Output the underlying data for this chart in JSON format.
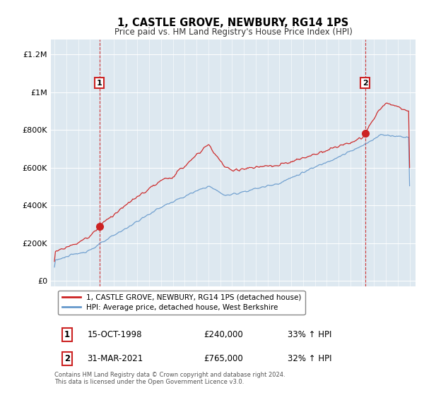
{
  "title": "1, CASTLE GROVE, NEWBURY, RG14 1PS",
  "subtitle": "Price paid vs. HM Land Registry's House Price Index (HPI)",
  "ylabel_ticks": [
    0,
    200000,
    400000,
    600000,
    800000,
    1000000,
    1200000
  ],
  "ylabel_labels": [
    "£0",
    "£200K",
    "£400K",
    "£600K",
    "£800K",
    "£1M",
    "£1.2M"
  ],
  "xlim_low": 1994.7,
  "xlim_high": 2025.5,
  "ylim_low": -30000,
  "ylim_high": 1280000,
  "sale1_year": 1998.79,
  "sale1_price": 240000,
  "sale1_label": "1",
  "sale2_year": 2021.25,
  "sale2_price": 765000,
  "sale2_label": "2",
  "line_color_red": "#cc2222",
  "line_color_blue": "#6699cc",
  "vline_color": "#cc2222",
  "plot_bg_color": "#dde8f0",
  "background_color": "#ffffff",
  "legend_label_red": "1, CASTLE GROVE, NEWBURY, RG14 1PS (detached house)",
  "legend_label_blue": "HPI: Average price, detached house, West Berkshire",
  "note1_label": "1",
  "note1_date": "15-OCT-1998",
  "note1_price": "£240,000",
  "note1_hpi": "33% ↑ HPI",
  "note2_label": "2",
  "note2_date": "31-MAR-2021",
  "note2_price": "£765,000",
  "note2_hpi": "32% ↑ HPI",
  "footer": "Contains HM Land Registry data © Crown copyright and database right 2024.\nThis data is licensed under the Open Government Licence v3.0."
}
